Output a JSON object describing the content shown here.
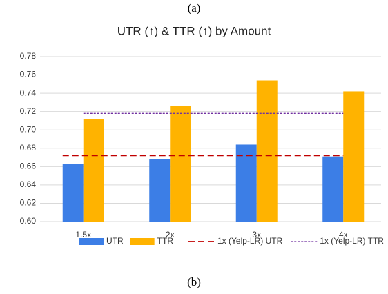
{
  "caption_top": "(a)",
  "caption_bottom": "(b)",
  "chart_data": {
    "type": "bar",
    "title": "UTR (↑) & TTR (↑) by Amount",
    "categories": [
      "1.5x",
      "2x",
      "3x",
      "4x"
    ],
    "series": [
      {
        "name": "UTR",
        "color": "#3c7ee6",
        "values": [
          0.663,
          0.668,
          0.684,
          0.671
        ]
      },
      {
        "name": "TTR",
        "color": "#ffb300",
        "values": [
          0.712,
          0.726,
          0.754,
          0.742
        ]
      }
    ],
    "reference_lines": [
      {
        "name": "1x (Yelp-LR) UTR",
        "value": 0.672,
        "color": "#c00000",
        "style": "dashed"
      },
      {
        "name": "1x (Yelp-LR) TTR",
        "value": 0.718,
        "color": "#7030a0",
        "style": "dotted"
      }
    ],
    "ylim": [
      0.6,
      0.78
    ],
    "yticks": [
      {
        "value": 0.6,
        "label": "0.60"
      },
      0.62,
      0.64,
      0.66,
      0.68,
      {
        "value": 0.7,
        "label": "0.70"
      },
      0.72,
      0.74,
      0.76,
      0.78
    ],
    "grid": true,
    "legend": "bottom"
  }
}
